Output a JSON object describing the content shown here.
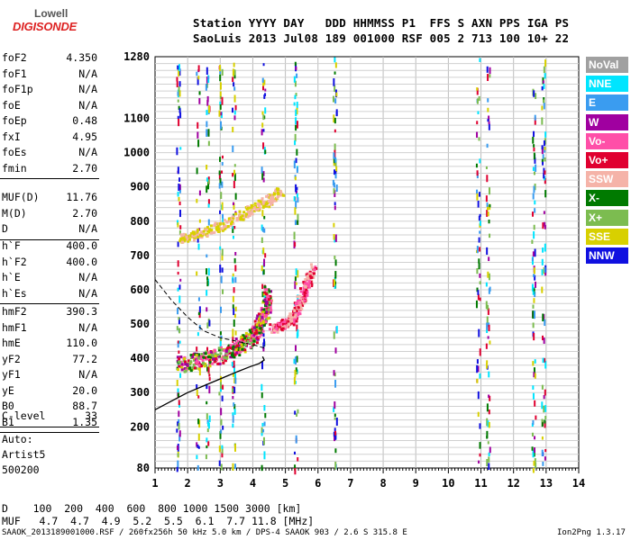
{
  "logo": {
    "line1": "Lowell",
    "line2": "DIGISONDE"
  },
  "header": {
    "line1": "Station YYYY DAY   DDD HHMMSS P1  FFS S AXN PPS IGA PS",
    "line2": "SaoLuis 2013 Jul08 189 001000 RSF 005 2 713 100 10+ 22"
  },
  "params_group1": [
    {
      "name": "foF2",
      "value": "4.350"
    },
    {
      "name": "foF1",
      "value": "N/A"
    },
    {
      "name": "foF1p",
      "value": "N/A"
    },
    {
      "name": "foE",
      "value": "N/A"
    },
    {
      "name": "foEp",
      "value": "0.48"
    },
    {
      "name": "fxI",
      "value": "4.95"
    },
    {
      "name": "foEs",
      "value": "N/A"
    },
    {
      "name": "fmin",
      "value": "2.70"
    }
  ],
  "params_group2": [
    {
      "name": "MUF(D)",
      "value": "11.76"
    },
    {
      "name": "M(D)",
      "value": "2.70"
    },
    {
      "name": "D",
      "value": "N/A"
    }
  ],
  "params_group3": [
    {
      "name": "h`F",
      "value": "400.0"
    },
    {
      "name": "h`F2",
      "value": "400.0"
    },
    {
      "name": "h`E",
      "value": "N/A"
    },
    {
      "name": "h`Es",
      "value": "N/A"
    }
  ],
  "params_group4": [
    {
      "name": "hmF2",
      "value": "390.3"
    },
    {
      "name": "hmF1",
      "value": "N/A"
    },
    {
      "name": "hmE",
      "value": "110.0"
    },
    {
      "name": "yF2",
      "value": "77.2"
    },
    {
      "name": "yF1",
      "value": "N/A"
    },
    {
      "name": "yE",
      "value": "20.0"
    },
    {
      "name": "B0",
      "value": "88.7"
    },
    {
      "name": "B1",
      "value": "1.35"
    }
  ],
  "params_group5": [
    {
      "name": "C-level",
      "value": "33"
    }
  ],
  "auto": {
    "line1": "Auto:",
    "line2": "Artist5",
    "line3": "500200"
  },
  "legend": [
    {
      "label": "NoVal",
      "color": "#a0a0a0"
    },
    {
      "label": "NNE",
      "color": "#00e5ff"
    },
    {
      "label": "E",
      "color": "#3a9cf0"
    },
    {
      "label": "W",
      "color": "#a000a0"
    },
    {
      "label": "Vo-",
      "color": "#ff4fa8"
    },
    {
      "label": "Vo+",
      "color": "#e00030"
    },
    {
      "label": "SSW",
      "color": "#f5b3a8"
    },
    {
      "label": "X-",
      "color": "#007a00"
    },
    {
      "label": "X+",
      "color": "#7cbc50"
    },
    {
      "label": "SSE",
      "color": "#d8d000"
    },
    {
      "label": "NNW",
      "color": "#1010e0"
    }
  ],
  "footer": {
    "d_line": "D    100  200  400  600  800 1000 1500 3000 [km]",
    "muf_line": "MUF   4.7  4.7  4.9  5.2  5.5  6.1  7.7 11.8 [MHz]",
    "info": "SAAOK_2013189001000.RSF / 260fx256h 50 kHz 5.0 km / DPS-4 SAAOK 903 / 2.6 S 315.8 E",
    "version": "Ion2Png 1.3.17"
  },
  "chart_data": {
    "type": "scatter",
    "xlim": [
      1,
      14
    ],
    "ylim": [
      80,
      1280
    ],
    "x_ticks": [
      "1",
      "2",
      "3",
      "4",
      "5",
      "6",
      "7",
      "8",
      "9",
      "10",
      "11",
      "12",
      "13",
      "14"
    ],
    "y_ticks": [
      "80",
      "200",
      "300",
      "400",
      "500",
      "600",
      "700",
      "800",
      "900",
      "1000",
      "1100",
      "1280"
    ],
    "grid": true,
    "series": [
      {
        "name": "O-trace F2",
        "points": [
          [
            1.7,
            385
          ],
          [
            2.2,
            395
          ],
          [
            2.7,
            405
          ],
          [
            3.2,
            420
          ],
          [
            3.6,
            440
          ],
          [
            3.9,
            460
          ],
          [
            4.1,
            490
          ],
          [
            4.3,
            520
          ],
          [
            4.4,
            560
          ],
          [
            4.45,
            600
          ]
        ]
      },
      {
        "name": "X-trace F2",
        "points": [
          [
            4.6,
            490
          ],
          [
            4.9,
            500
          ],
          [
            5.2,
            520
          ],
          [
            5.4,
            560
          ],
          [
            5.6,
            610
          ],
          [
            5.8,
            670
          ]
        ]
      },
      {
        "name": "Multiple reflection",
        "points": [
          [
            1.7,
            750
          ],
          [
            2.3,
            765
          ],
          [
            3.0,
            790
          ],
          [
            3.8,
            830
          ],
          [
            4.4,
            860
          ],
          [
            4.8,
            890
          ]
        ]
      }
    ],
    "profile_curve": [
      [
        1.0,
        250
      ],
      [
        1.5,
        275
      ],
      [
        2.0,
        300
      ],
      [
        2.5,
        320
      ],
      [
        3.0,
        340
      ],
      [
        3.5,
        360
      ],
      [
        3.9,
        375
      ],
      [
        4.2,
        385
      ],
      [
        4.35,
        395
      ],
      [
        4.3,
        405
      ]
    ],
    "dashed_curve": [
      [
        1.0,
        630
      ],
      [
        1.5,
        570
      ],
      [
        2.0,
        520
      ],
      [
        2.5,
        480
      ],
      [
        3.0,
        460
      ],
      [
        3.5,
        450
      ],
      [
        4.0,
        440
      ],
      [
        4.35,
        430
      ]
    ],
    "vertical_streaks": [
      1.7,
      2.3,
      2.6,
      3.0,
      3.4,
      4.3,
      5.3,
      6.5,
      10.9,
      11.2,
      12.6,
      12.9
    ]
  }
}
